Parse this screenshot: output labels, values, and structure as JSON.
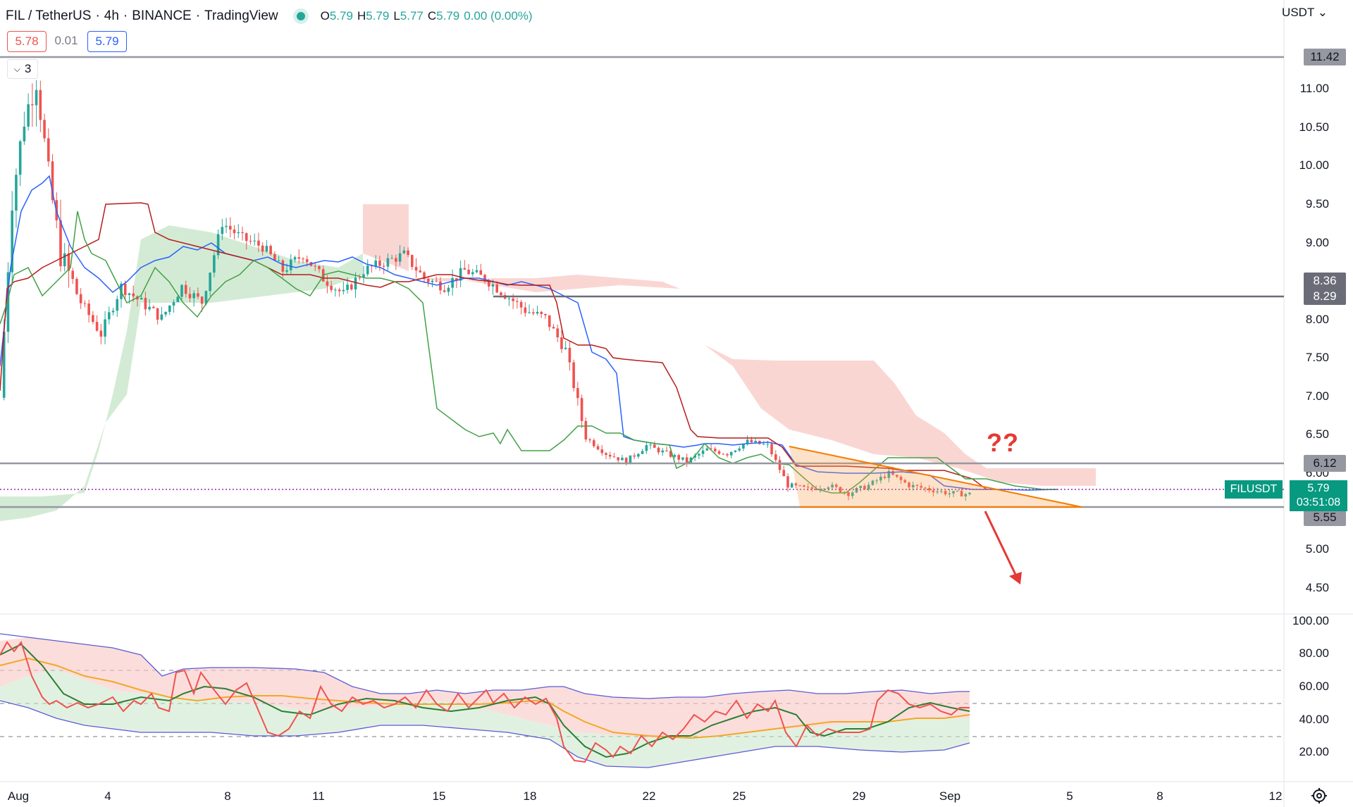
{
  "header": {
    "symbol": "FIL / TetherUS",
    "interval": "4h",
    "exchange": "BINANCE",
    "platform": "TradingView",
    "ohlc": {
      "o_label": "O",
      "o": "5.79",
      "h_label": "H",
      "h": "5.79",
      "l_label": "L",
      "l": "5.77",
      "c_label": "C",
      "c": "5.79",
      "change": "0.00 (0.00%)"
    },
    "sell_price": "5.78",
    "spread": "0.01",
    "buy_price": "5.79",
    "indicators_count": "3"
  },
  "price_axis": {
    "currency": "USDT",
    "labels": [
      "11.00",
      "10.50",
      "10.00",
      "9.50",
      "9.00",
      "8.00",
      "7.50",
      "7.00",
      "6.50",
      "6.00",
      "5.00",
      "4.50"
    ]
  },
  "badges": {
    "b1": "11.42",
    "b2": "8.36",
    "b3": "8.29",
    "b4": "6.12",
    "b5": "5.55"
  },
  "last_price": {
    "ticker": "FILUSDT",
    "price": "5.79",
    "countdown": "03:51:08"
  },
  "annotation": {
    "text": "??"
  },
  "rsi_axis": {
    "labels": [
      "100.00",
      "80.00",
      "60.00",
      "40.00",
      "20.00"
    ]
  },
  "time_axis": {
    "labels": [
      "Aug",
      "4",
      "8",
      "11",
      "15",
      "18",
      "22",
      "25",
      "29",
      "Sep",
      "5",
      "8",
      "12"
    ]
  },
  "colors": {
    "up": "#26a69a",
    "down": "#ef5350",
    "tenkan": "#2962ff",
    "kijun": "#b71c1c",
    "lagging": "#43a047",
    "cloud_bear": "#f8c8c4",
    "cloud_bull": "#c8e6c9",
    "triangle": "#f7a04b",
    "rsi": "#ef5350",
    "rsi_ma": "#f57c00",
    "bb": "#5b5bd6",
    "hline": "#787b86"
  },
  "icons": {
    "settings": "gear-icon",
    "chevron": "chevron-down-icon"
  },
  "chart_data": {
    "type": "candlestick",
    "symbol": "FILUSDT",
    "ylim": [
      4.3,
      11.6
    ],
    "horizontal_levels": [
      11.42,
      8.29,
      6.12,
      5.55
    ],
    "price_path": [
      [
        0,
        7.0
      ],
      [
        3,
        9.5
      ],
      [
        6,
        10.5
      ],
      [
        9,
        11.0
      ],
      [
        12,
        9.8
      ],
      [
        15,
        8.8
      ],
      [
        20,
        8.2
      ],
      [
        25,
        7.8
      ],
      [
        30,
        8.4
      ],
      [
        35,
        8.2
      ],
      [
        40,
        8.0
      ],
      [
        45,
        8.4
      ],
      [
        50,
        8.2
      ],
      [
        55,
        9.2
      ],
      [
        60,
        9.0
      ],
      [
        65,
        8.9
      ],
      [
        70,
        8.6
      ],
      [
        75,
        8.8
      ],
      [
        80,
        8.5
      ],
      [
        85,
        8.3
      ],
      [
        90,
        8.6
      ],
      [
        95,
        8.7
      ],
      [
        100,
        8.8
      ],
      [
        105,
        8.5
      ],
      [
        110,
        8.4
      ],
      [
        115,
        8.6
      ],
      [
        120,
        8.5
      ],
      [
        125,
        8.3
      ],
      [
        130,
        8.1
      ],
      [
        135,
        8.0
      ],
      [
        140,
        7.6
      ],
      [
        145,
        6.5
      ],
      [
        150,
        6.3
      ],
      [
        155,
        6.2
      ],
      [
        160,
        6.4
      ],
      [
        165,
        6.3
      ],
      [
        170,
        6.2
      ],
      [
        175,
        6.35
      ],
      [
        180,
        6.3
      ],
      [
        185,
        6.45
      ],
      [
        190,
        6.4
      ],
      [
        195,
        5.9
      ],
      [
        200,
        5.85
      ],
      [
        205,
        5.9
      ],
      [
        210,
        5.8
      ],
      [
        215,
        5.9
      ],
      [
        220,
        6.05
      ],
      [
        225,
        5.9
      ],
      [
        230,
        5.85
      ],
      [
        235,
        5.8
      ],
      [
        240,
        5.79
      ]
    ],
    "rsi_ylim": [
      0,
      100
    ],
    "rsi_levels": [
      70,
      50,
      30
    ]
  }
}
